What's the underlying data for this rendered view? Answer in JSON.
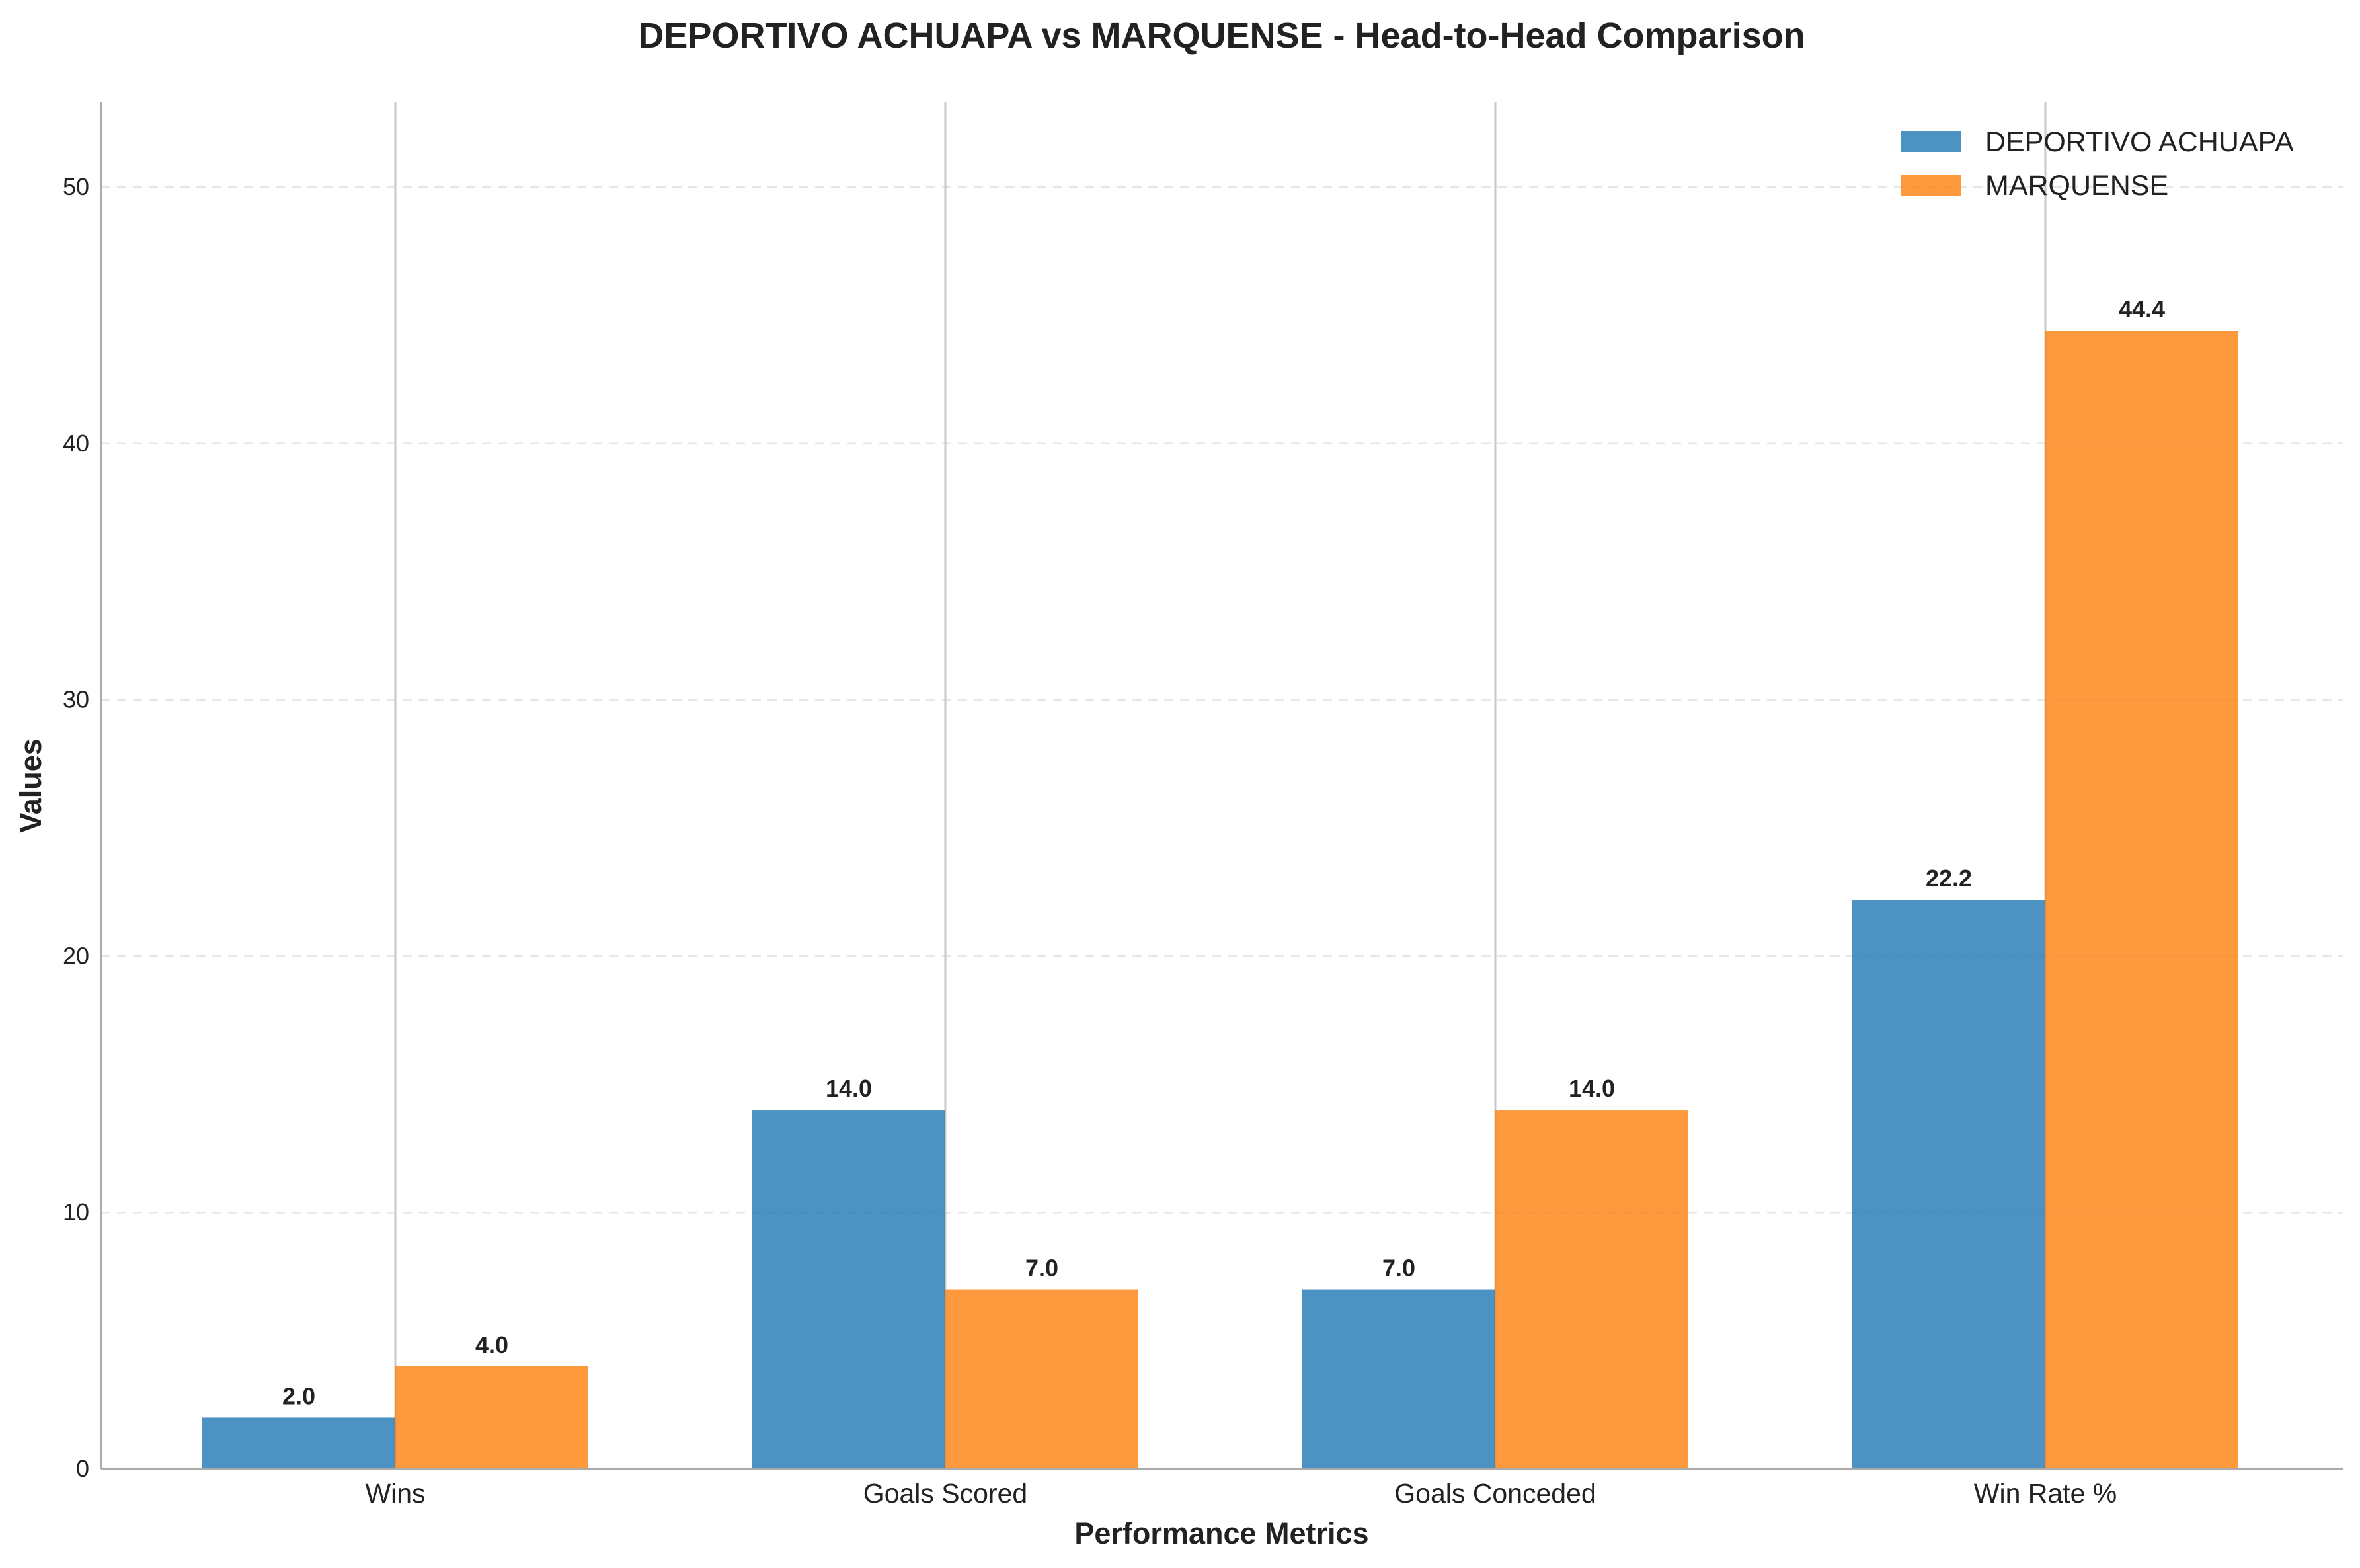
{
  "chart_data": {
    "type": "bar",
    "title": "DEPORTIVO ACHUAPA vs MARQUENSE - Head-to-Head Comparison",
    "xlabel": "Performance Metrics",
    "ylabel": "Values",
    "categories": [
      "Wins",
      "Goals Scored",
      "Goals Conceded",
      "Win Rate %"
    ],
    "series": [
      {
        "name": "DEPORTIVO ACHUAPA",
        "color": "#1f77b4",
        "values": [
          2.0,
          14.0,
          7.0,
          22.2
        ],
        "value_labels": [
          "2.0",
          "14.0",
          "7.0",
          "22.2"
        ]
      },
      {
        "name": "MARQUENSE",
        "color": "#ff7f0e",
        "values": [
          4.0,
          7.0,
          14.0,
          44.4
        ],
        "value_labels": [
          "4.0",
          "7.0",
          "14.0",
          "44.4"
        ]
      }
    ],
    "ylim": [
      0,
      53.3
    ],
    "yticks": [
      0,
      10,
      20,
      30,
      40,
      50
    ],
    "ytick_labels": [
      "0",
      "10",
      "20",
      "30",
      "40",
      "50"
    ],
    "grid": true,
    "legend_position": "top-right"
  }
}
